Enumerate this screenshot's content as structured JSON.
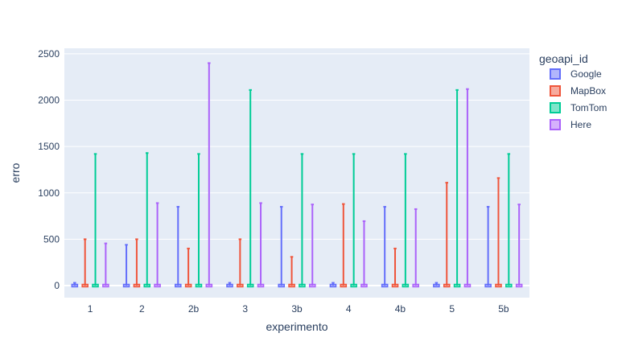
{
  "chart_data": {
    "type": "box",
    "xlabel": "experimento",
    "ylabel": "erro",
    "categories": [
      "1",
      "2",
      "2b",
      "3",
      "3b",
      "4",
      "4b",
      "5",
      "5b"
    ],
    "ylim": [
      -130,
      2560
    ],
    "yticks": [
      0,
      500,
      1000,
      1500,
      2000,
      2500
    ],
    "legend_title": "geoapi_id",
    "legend_position": "right",
    "grid": true,
    "series": [
      {
        "name": "Google",
        "color": "#636efa",
        "max": [
          30,
          440,
          850,
          30,
          850,
          30,
          850,
          30,
          850
        ]
      },
      {
        "name": "MapBox",
        "color": "#ef553b",
        "max": [
          500,
          500,
          400,
          500,
          310,
          880,
          400,
          1110,
          1160
        ]
      },
      {
        "name": "TomTom",
        "color": "#00cc96",
        "max": [
          1420,
          1430,
          1420,
          2110,
          1420,
          1420,
          1420,
          2110,
          1420
        ]
      },
      {
        "name": "Here",
        "color": "#ab63fa",
        "max": [
          455,
          890,
          2400,
          890,
          875,
          695,
          825,
          2120,
          875
        ]
      }
    ]
  }
}
